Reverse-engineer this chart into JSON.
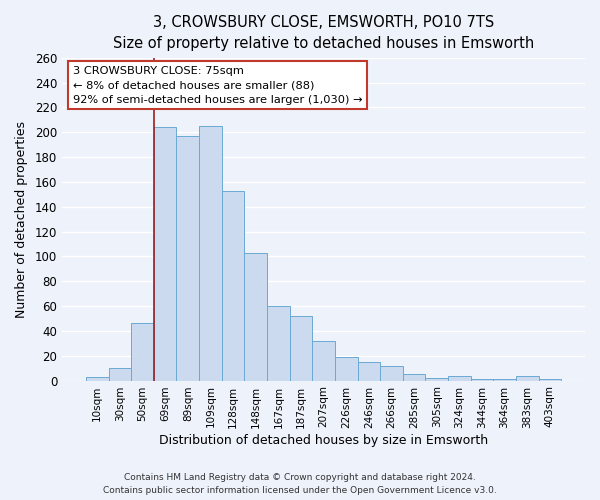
{
  "title": "3, CROWSBURY CLOSE, EMSWORTH, PO10 7TS",
  "subtitle": "Size of property relative to detached houses in Emsworth",
  "xlabel": "Distribution of detached houses by size in Emsworth",
  "ylabel": "Number of detached properties",
  "categories": [
    "10sqm",
    "30sqm",
    "50sqm",
    "69sqm",
    "89sqm",
    "109sqm",
    "128sqm",
    "148sqm",
    "167sqm",
    "187sqm",
    "207sqm",
    "226sqm",
    "246sqm",
    "266sqm",
    "285sqm",
    "305sqm",
    "324sqm",
    "344sqm",
    "364sqm",
    "383sqm",
    "403sqm"
  ],
  "values": [
    3,
    10,
    46,
    204,
    197,
    205,
    153,
    103,
    60,
    52,
    32,
    19,
    15,
    12,
    5,
    2,
    4,
    1,
    1,
    4,
    1
  ],
  "bar_color": "#ccdaf0",
  "bar_edge_color": "#6aaad4",
  "bar_width": 1.0,
  "ylim": [
    0,
    260
  ],
  "yticks": [
    0,
    20,
    40,
    60,
    80,
    100,
    120,
    140,
    160,
    180,
    200,
    220,
    240,
    260
  ],
  "vline_x_bar_index": 3,
  "vline_color": "#9c1f1f",
  "annotation_title": "3 CROWSBURY CLOSE: 75sqm",
  "annotation_line1": "← 8% of detached houses are smaller (88)",
  "annotation_line2": "92% of semi-detached houses are larger (1,030) →",
  "annotation_box_facecolor": "#ffffff",
  "annotation_box_edgecolor": "#c0392b",
  "footnote1": "Contains HM Land Registry data © Crown copyright and database right 2024.",
  "footnote2": "Contains public sector information licensed under the Open Government Licence v3.0.",
  "bg_color": "#eef2fa",
  "grid_color": "#ffffff",
  "title_fontsize": 10.5,
  "subtitle_fontsize": 9.5
}
